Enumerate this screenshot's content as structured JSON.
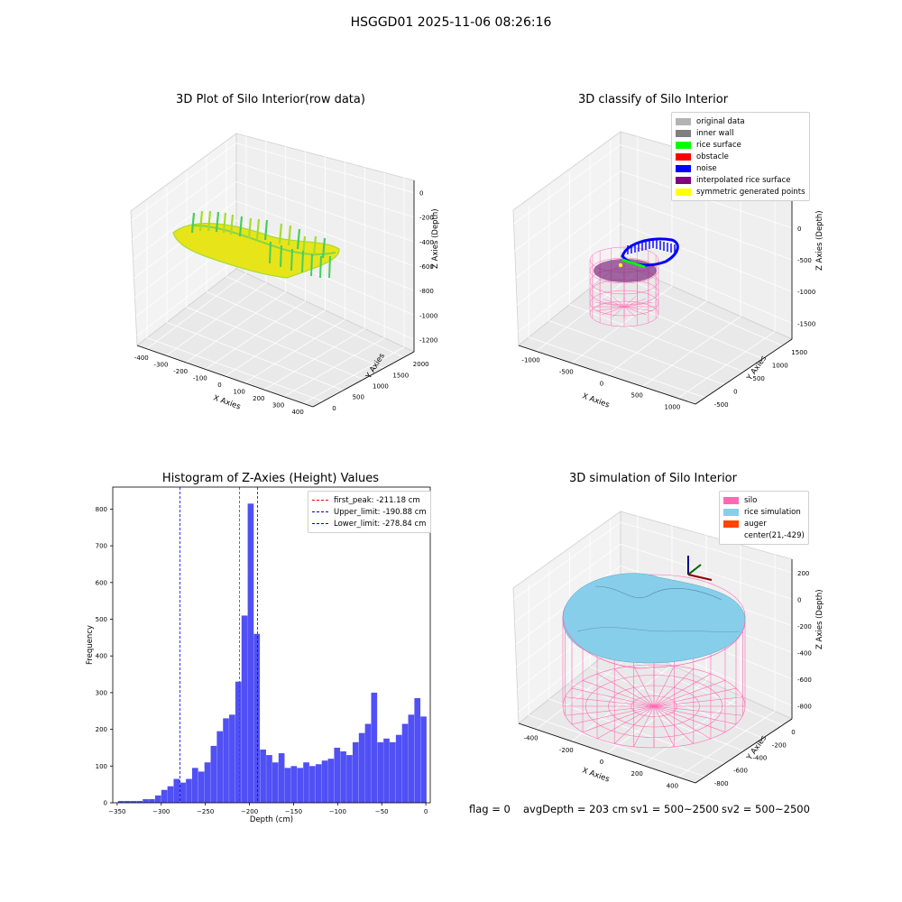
{
  "figure": {
    "suptitle": "HSGGD01 2025-11-06 08:26:16",
    "footer": {
      "flag": "flag = 0",
      "avg_depth": "avgDepth = 203 cm",
      "sv1": "sv1 = 500~2500",
      "sv2": "sv2 = 500~2500"
    }
  },
  "panels": {
    "raw": {
      "title": "3D Plot of Silo Interior(row data)",
      "xlabel": "X Axies",
      "ylabel": "Y Axies",
      "zlabel": "Z Axies (Depth)",
      "xticks": [
        "-400",
        "-300",
        "-200",
        "-100",
        "0",
        "100",
        "200",
        "300",
        "400"
      ],
      "yticks": [
        "0",
        "500",
        "1000",
        "1500",
        "2000"
      ],
      "zticks": [
        "0",
        "-200",
        "-400",
        "-600",
        "-800",
        "-1000",
        "-1200"
      ],
      "colormap": [
        "#44ce5f",
        "#a3dc2e",
        "#e8e41a"
      ]
    },
    "classify": {
      "title": "3D classify of Silo Interior",
      "xlabel": "X Axies",
      "ylabel": "Y Axies",
      "zlabel": "Z Axies (Depth)",
      "xticks": [
        "-1000",
        "-500",
        "0",
        "500",
        "1000"
      ],
      "yticks": [
        "-500",
        "0",
        "500",
        "1000",
        "1500"
      ],
      "zticks": [
        "500",
        "0",
        "-500",
        "-1000",
        "-1500"
      ],
      "legend": [
        {
          "label": "original data",
          "color": "#b3b3b3"
        },
        {
          "label": "inner wall",
          "color": "#7f7f7f"
        },
        {
          "label": "rice surface",
          "color": "#00ff00"
        },
        {
          "label": "obstacle",
          "color": "#ff0000"
        },
        {
          "label": "noise",
          "color": "#0000ff"
        },
        {
          "label": "interpolated rice surface",
          "color": "#800080"
        },
        {
          "label": "symmetric generated points",
          "color": "#ffff00"
        }
      ]
    },
    "simulation": {
      "title": "3D simulation of Silo Interior",
      "xlabel": "X Axies",
      "ylabel": "Y Axies",
      "zlabel": "Z Axies (Depth)",
      "xticks": [
        "-400",
        "-200",
        "0",
        "200",
        "400"
      ],
      "yticks": [
        "-800",
        "-600",
        "-400",
        "-200",
        "0"
      ],
      "zticks": [
        "200",
        "0",
        "-200",
        "-400",
        "-600",
        "-800"
      ],
      "legend": [
        {
          "label": "silo",
          "color": "#ff69b4"
        },
        {
          "label": "rice simulation",
          "color": "#87ceeb"
        },
        {
          "label": "auger",
          "color": "#ff4500"
        },
        {
          "label": "center(21,-429)",
          "color": ""
        }
      ]
    }
  },
  "chart_data": {
    "type": "bar",
    "title": "Histogram of Z-Axies (Height) Values",
    "xlabel": "Depth (cm)",
    "ylabel": "Frequency",
    "xlim": [
      -355,
      5
    ],
    "ylim": [
      0,
      860
    ],
    "xticks": [
      -350,
      -300,
      -250,
      -200,
      -150,
      -100,
      -50,
      0
    ],
    "yticks": [
      0,
      100,
      200,
      300,
      400,
      500,
      600,
      700,
      800
    ],
    "bar_color": "#5050f5",
    "bin_edges": [
      -349,
      -342,
      -335,
      -328,
      -321,
      -314,
      -307,
      -300,
      -293,
      -286,
      -279,
      -272,
      -265,
      -258,
      -251,
      -244,
      -237,
      -230,
      -223,
      -216,
      -209,
      -202,
      -195,
      -188,
      -181,
      -174,
      -167,
      -160,
      -153,
      -146,
      -139,
      -132,
      -125,
      -118,
      -111,
      -104,
      -97,
      -90,
      -83,
      -76,
      -69,
      -62,
      -55,
      -48,
      -41,
      -34,
      -27,
      -20,
      -13,
      -6
    ],
    "counts": [
      5,
      5,
      5,
      5,
      10,
      10,
      20,
      35,
      45,
      65,
      55,
      65,
      95,
      85,
      110,
      155,
      195,
      230,
      240,
      330,
      510,
      815,
      460,
      145,
      130,
      110,
      135,
      95,
      100,
      95,
      110,
      100,
      105,
      115,
      120,
      150,
      140,
      130,
      165,
      190,
      215,
      300,
      165,
      175,
      165,
      185,
      215,
      240,
      285,
      235
    ],
    "vlines": [
      {
        "x": -211.18,
        "label": "first_peak: -211.18 cm",
        "color": "#ff0000"
      },
      {
        "x": -190.88,
        "label": "Upper_limit: -190.88 cm",
        "color": "#0000ff"
      },
      {
        "x": -278.84,
        "label": "Lower_limit: -278.84 cm",
        "color": "#0000ff"
      }
    ],
    "legend_position": "top-right"
  }
}
